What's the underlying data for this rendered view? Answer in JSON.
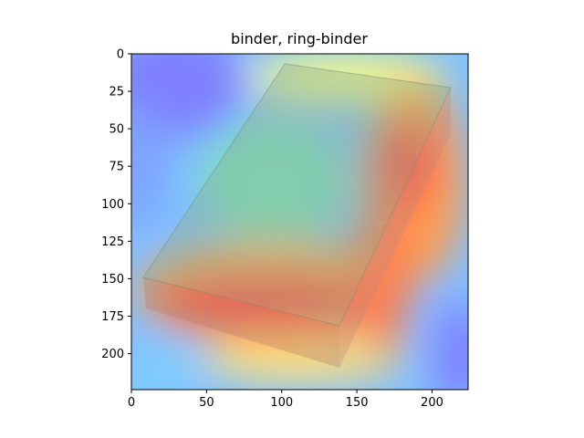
{
  "chart_data": {
    "type": "heatmap",
    "title": "binder, ring-binder",
    "xlabel": "",
    "ylabel": "",
    "xlim": [
      0,
      224
    ],
    "ylim": [
      224,
      0
    ],
    "x_ticks": [
      0,
      50,
      100,
      150,
      200
    ],
    "y_ticks": [
      0,
      25,
      50,
      75,
      100,
      125,
      150,
      175,
      200
    ],
    "x_tick_labels": [
      "0",
      "50",
      "100",
      "150",
      "200"
    ],
    "y_tick_labels": [
      "0",
      "25",
      "50",
      "75",
      "100",
      "125",
      "150",
      "175",
      "200"
    ],
    "colormap": "jet",
    "grid": false,
    "description_content": "Grad-CAM style heatmap overlay on an image of a closed binder",
    "colors": {
      "low": "#7f7fff",
      "mid": "#7fffb2",
      "high": "#ff4f4f",
      "binder_top": "#8aa88a",
      "binder_side": "#b07a6a"
    }
  }
}
